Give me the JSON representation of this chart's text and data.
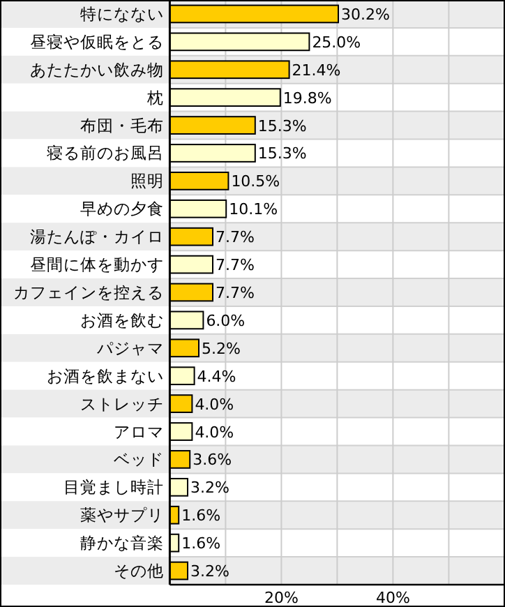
{
  "chart_data": {
    "type": "bar",
    "orientation": "horizontal",
    "categories": [
      "特になない",
      "昼寝や仮眠をとる",
      "あたたかい飲み物",
      "枕",
      "布団・毛布",
      "寝る前のお風呂",
      "照明",
      "早めの夕食",
      "湯たんぽ・カイロ",
      "昼間に体を動かす",
      "カフェインを控える",
      "お酒を飲む",
      "パジャマ",
      "お酒を飲まない",
      "ストレッチ",
      "アロマ",
      "ベッド",
      "目覚まし時計",
      "薬やサプリ",
      "静かな音楽",
      "その他"
    ],
    "values": [
      30.2,
      25.0,
      21.4,
      19.8,
      15.3,
      15.3,
      10.5,
      10.1,
      7.7,
      7.7,
      7.7,
      6.0,
      5.2,
      4.4,
      4.0,
      4.0,
      3.6,
      3.2,
      1.6,
      1.6,
      3.2
    ],
    "value_labels": [
      "30.2%",
      "25.0%",
      "21.4%",
      "19.8%",
      "15.3%",
      "15.3%",
      "10.5%",
      "10.1%",
      "7.7%",
      "7.7%",
      "7.7%",
      "6.0%",
      "5.2%",
      "4.4%",
      "4.0%",
      "4.0%",
      "3.6%",
      "3.2%",
      "1.6%",
      "1.6%",
      "3.2%"
    ],
    "colors": [
      "#ffcc00",
      "#ffffcc",
      "#ffcc00",
      "#ffffcc",
      "#ffcc00",
      "#ffffcc",
      "#ffcc00",
      "#ffffcc",
      "#ffcc00",
      "#ffffcc",
      "#ffcc00",
      "#ffffcc",
      "#ffcc00",
      "#ffffcc",
      "#ffcc00",
      "#ffffcc",
      "#ffcc00",
      "#ffffcc",
      "#ffcc00",
      "#ffffcc",
      "#ffcc00"
    ],
    "xlim": [
      0,
      60
    ],
    "xticks": [
      {
        "value": 10,
        "label": null
      },
      {
        "value": 20,
        "label": "20%"
      },
      {
        "value": 30,
        "label": null
      },
      {
        "value": 40,
        "label": "40%"
      },
      {
        "value": 50,
        "label": null
      },
      {
        "value": 60,
        "label": null
      }
    ],
    "grid": "x"
  }
}
